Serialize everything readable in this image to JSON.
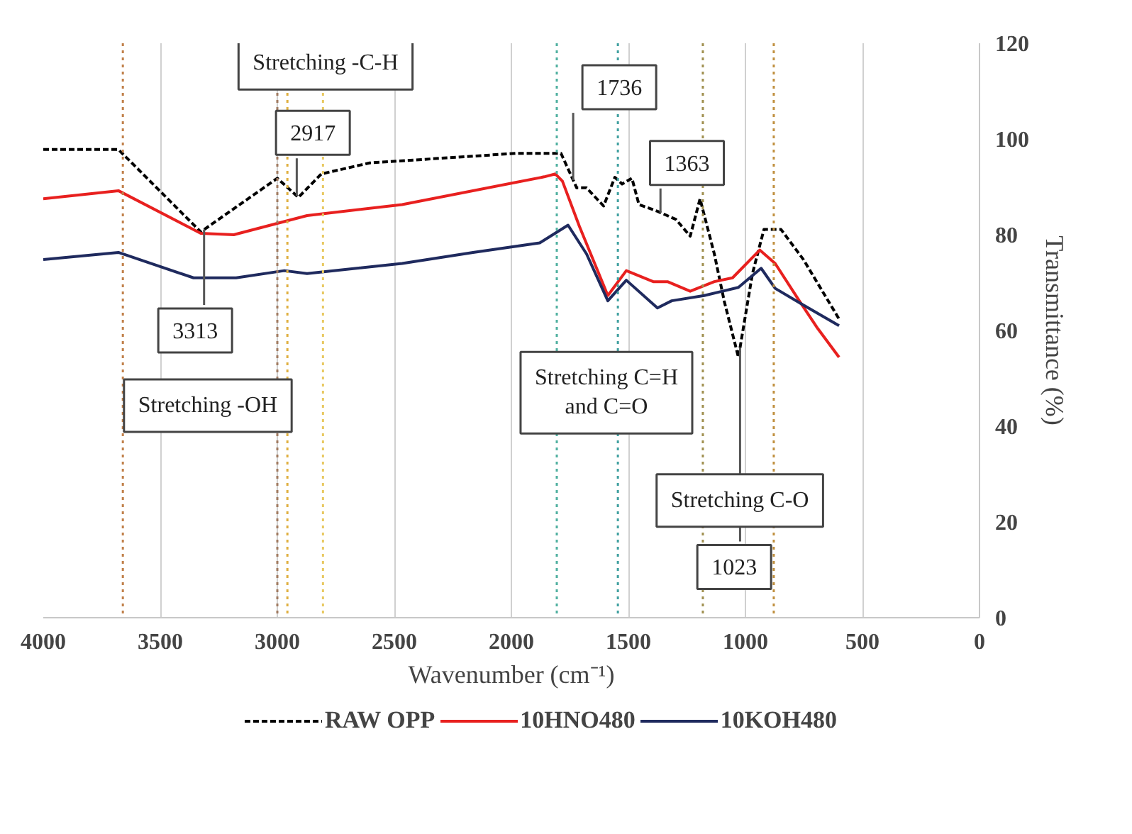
{
  "chart_data": {
    "type": "line",
    "xlabel": "Wavenumber (cm⁻¹)",
    "ylabel": "Transmittance (%)",
    "xlim": [
      4000,
      0
    ],
    "xticks": [
      4000,
      3500,
      3000,
      2500,
      2000,
      1500,
      1000,
      500,
      0
    ],
    "ylim": [
      0,
      120
    ],
    "yticks": [
      0,
      20,
      40,
      60,
      80,
      100,
      120
    ],
    "grid": "x",
    "legend": "bottom",
    "marker": "none",
    "series": [
      {
        "name": "RAW OPP",
        "color": "#000000",
        "line_style": "dashed",
        "x": [
          4000,
          3679,
          3327,
          3000,
          2910,
          2812,
          2606,
          1982,
          1788,
          1721,
          1679,
          1606,
          1558,
          1527,
          1485,
          1455,
          1376,
          1297,
          1236,
          1194,
          1133,
          1091,
          1030,
          970,
          921,
          848,
          752,
          600
        ],
        "values": [
          97.8,
          97.8,
          80.6,
          91.8,
          87.8,
          92.7,
          95,
          97,
          97,
          89.8,
          89.8,
          86,
          92,
          90.6,
          91.8,
          86.3,
          84.9,
          83.2,
          79.7,
          87.5,
          76,
          66.2,
          54.4,
          71.9,
          81.1,
          81.1,
          74.8,
          62.4
        ]
      },
      {
        "name": "10HNO480",
        "color": "#e8201f",
        "line_style": "solid",
        "x": [
          4000,
          3679,
          3327,
          3186,
          2873,
          2467,
          1860,
          1812,
          1782,
          1709,
          1661,
          1588,
          1509,
          1394,
          1333,
          1236,
          1133,
          1055,
          939,
          873,
          770,
          691,
          600
        ],
        "values": [
          87.5,
          89.2,
          80.3,
          80,
          84,
          86.3,
          92.1,
          92.7,
          91.2,
          81.7,
          76,
          67.3,
          72.5,
          70.2,
          70.2,
          68.2,
          70.2,
          71,
          76.8,
          74,
          66.2,
          60.4,
          54.4
        ]
      },
      {
        "name": "10KOH480",
        "color": "#1f2a5e",
        "line_style": "solid",
        "x": [
          4000,
          3679,
          3358,
          3176,
          2970,
          2873,
          2467,
          2164,
          1879,
          1758,
          1679,
          1588,
          1509,
          1376,
          1315,
          1176,
          1030,
          933,
          873,
          752,
          600
        ],
        "values": [
          74.8,
          76.3,
          71,
          71,
          72.5,
          71.9,
          74,
          76.3,
          78.3,
          82,
          76,
          66.2,
          70.5,
          64.7,
          66.2,
          67.3,
          69,
          73,
          68.8,
          65.3,
          61
        ]
      }
    ],
    "ref_lines": [
      {
        "axis": "x",
        "value": 3660,
        "color": "#c0804a",
        "line_style": "dotted"
      },
      {
        "axis": "x",
        "value": 3000,
        "color": "#a07a60",
        "line_style": "dotted"
      },
      {
        "axis": "x",
        "value": 2957,
        "color": "#e0b040",
        "line_style": "dotted"
      },
      {
        "axis": "x",
        "value": 2805,
        "color": "#e8c860",
        "line_style": "dotted"
      },
      {
        "axis": "x",
        "value": 1806,
        "color": "#50b0a0",
        "line_style": "dotted"
      },
      {
        "axis": "x",
        "value": 1545,
        "color": "#40a0a0",
        "line_style": "dotted"
      },
      {
        "axis": "x",
        "value": 1182,
        "color": "#a09050",
        "line_style": "dotted"
      },
      {
        "axis": "x",
        "value": 879,
        "color": "#c09040",
        "line_style": "dotted"
      }
    ],
    "annotations": [
      "Stretching -C-H",
      {
        "text": "2917",
        "x": 2917,
        "y": 88.1
      },
      {
        "text": "3313",
        "x": 3313,
        "y": 81.1
      },
      "Stretching -OH",
      {
        "text": "1736",
        "x": 1736,
        "y": 91.4
      },
      {
        "text": "1363",
        "x": 1363,
        "y": 84.6
      },
      "Stretching C=H\nand C=O",
      "Stretching C-O",
      {
        "text": "1023",
        "x": 1023,
        "y": 56.4
      }
    ]
  }
}
